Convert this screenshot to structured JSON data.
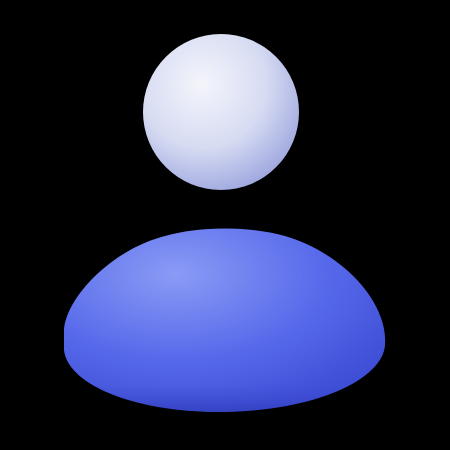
{
  "icon": {
    "name": "user-icon",
    "colors": {
      "background": "#000000",
      "head_light": "#f4f5fb",
      "head_mid": "#d6dbf2",
      "head_shadow": "#9aa3de",
      "body_light": "#8a9bf5",
      "body_mid": "#5668ea",
      "body_shadow": "#3342cc"
    }
  }
}
